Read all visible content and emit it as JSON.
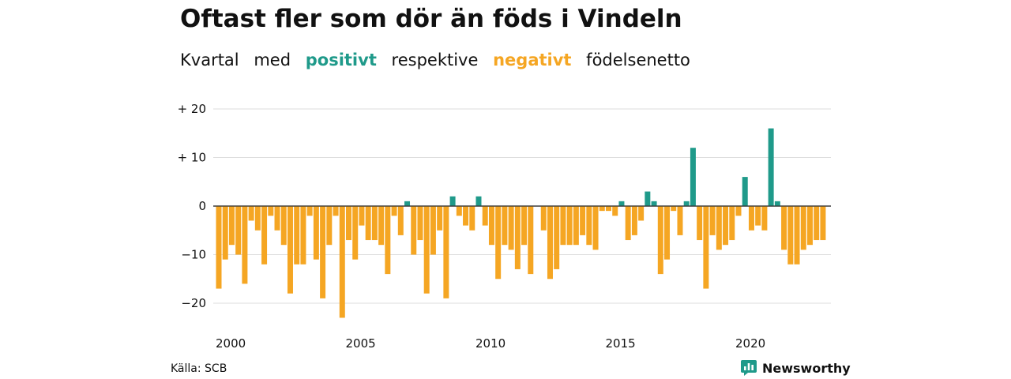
{
  "title": "Oftast fler som dör än föds i Vindeln",
  "subtitle": {
    "part1": "Kvartal",
    "part2": "med",
    "positive_word": "positivt",
    "part3": "respektive",
    "negative_word": "negativt",
    "part4": "födelsenetto"
  },
  "colors": {
    "positive": "#1f9a8a",
    "negative": "#f5a623",
    "grid": "#dddddd",
    "zero": "#333333"
  },
  "chart_data": {
    "type": "bar",
    "x_start": 2000,
    "x_step": 0.25,
    "ylim": [
      -23,
      20
    ],
    "y_ticks": [
      20,
      10,
      0,
      -10,
      -20
    ],
    "y_tick_labels": [
      "+ 20",
      "+ 10",
      "0",
      "−10",
      "−20"
    ],
    "x_ticks": [
      2000,
      2005,
      2010,
      2015,
      2020
    ],
    "x_tick_labels": [
      "2000",
      "2005",
      "2010",
      "2015",
      "2020"
    ],
    "values": [
      -17,
      -11,
      -8,
      -10,
      -16,
      -3,
      -5,
      -12,
      -2,
      -5,
      -8,
      -18,
      -12,
      -12,
      -2,
      -11,
      -19,
      -8,
      -2,
      -23,
      -7,
      -11,
      -4,
      -7,
      -7,
      -8,
      -14,
      -2,
      -6,
      1,
      -10,
      -7,
      -18,
      -10,
      -5,
      -19,
      2,
      -2,
      -4,
      -5,
      2,
      -4,
      -8,
      -15,
      -8,
      -9,
      -13,
      -8,
      -14,
      0,
      -5,
      -15,
      -13,
      -8,
      -8,
      -8,
      -6,
      -8,
      -9,
      -1,
      -1,
      -2,
      1,
      -7,
      -6,
      -3,
      3,
      1,
      -14,
      -11,
      -1,
      -6,
      1,
      12,
      -7,
      -17,
      -6,
      -9,
      -8,
      -7,
      -2,
      6,
      -5,
      -4,
      -5,
      16,
      1,
      -9,
      -12,
      -12,
      -9,
      -8,
      -7,
      -7
    ],
    "grid": true
  },
  "source": "Källa: SCB",
  "brand": {
    "name": "Newsworthy"
  }
}
